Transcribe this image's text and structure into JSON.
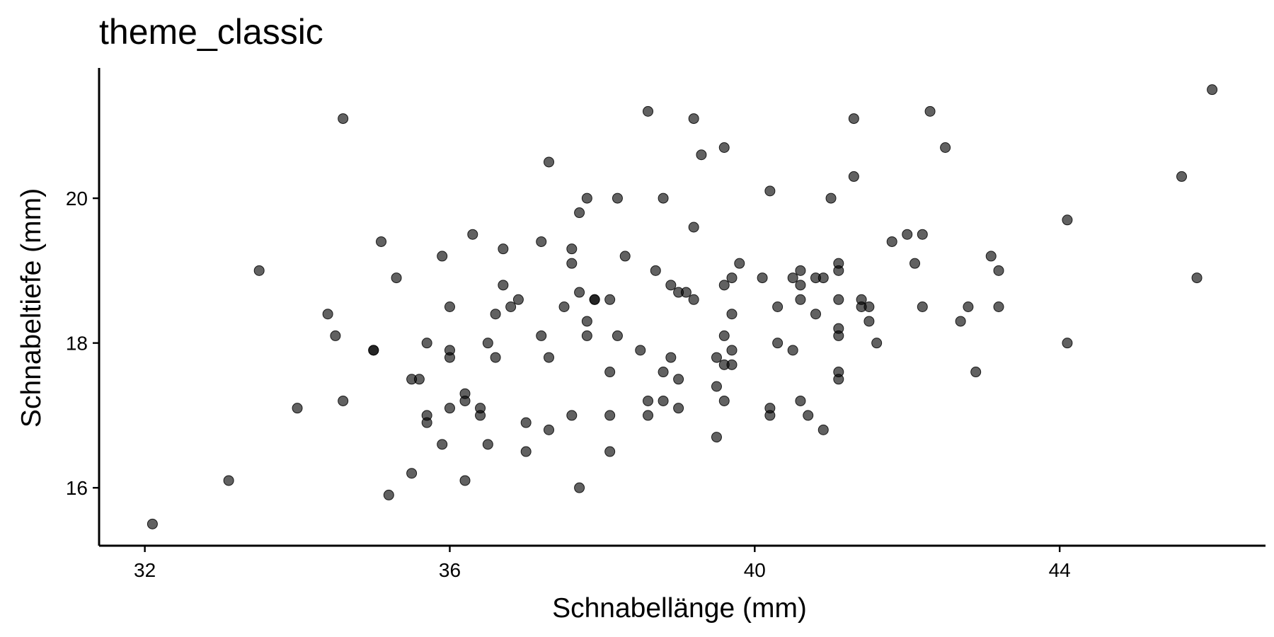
{
  "chart_data": {
    "type": "scatter",
    "title": "theme_classic",
    "xlabel": "Schnabellänge (mm)",
    "ylabel": "Schnabeltiefe (mm)",
    "xlim": [
      31.4,
      46.7
    ],
    "ylim": [
      15.2,
      21.8
    ],
    "x_ticks": [
      32,
      36,
      40,
      44
    ],
    "y_ticks": [
      16,
      18,
      20
    ],
    "grid": false,
    "legend": "none",
    "point_color": "#000000",
    "points": [
      [
        32.1,
        15.5
      ],
      [
        33.1,
        16.1
      ],
      [
        33.5,
        19.0
      ],
      [
        34.0,
        17.1
      ],
      [
        34.4,
        18.4
      ],
      [
        34.5,
        18.1
      ],
      [
        34.6,
        21.1
      ],
      [
        34.6,
        17.2
      ],
      [
        35.0,
        17.9
      ],
      [
        35.0,
        17.9
      ],
      [
        35.1,
        19.4
      ],
      [
        35.2,
        15.9
      ],
      [
        35.3,
        18.9
      ],
      [
        35.5,
        16.2
      ],
      [
        35.5,
        17.5
      ],
      [
        35.6,
        17.5
      ],
      [
        35.7,
        18.0
      ],
      [
        35.7,
        17.0
      ],
      [
        35.7,
        16.9
      ],
      [
        35.9,
        19.2
      ],
      [
        35.9,
        16.6
      ],
      [
        36.0,
        18.5
      ],
      [
        36.0,
        17.9
      ],
      [
        36.0,
        17.8
      ],
      [
        36.0,
        17.1
      ],
      [
        36.2,
        17.3
      ],
      [
        36.2,
        17.2
      ],
      [
        36.2,
        16.1
      ],
      [
        36.3,
        19.5
      ],
      [
        36.4,
        17.1
      ],
      [
        36.4,
        17.0
      ],
      [
        36.5,
        18.0
      ],
      [
        36.5,
        16.6
      ],
      [
        36.6,
        18.4
      ],
      [
        36.6,
        17.8
      ],
      [
        36.7,
        19.3
      ],
      [
        36.7,
        18.8
      ],
      [
        36.8,
        18.5
      ],
      [
        36.9,
        18.6
      ],
      [
        37.0,
        16.9
      ],
      [
        37.0,
        16.5
      ],
      [
        37.2,
        19.4
      ],
      [
        37.2,
        18.1
      ],
      [
        37.3,
        20.5
      ],
      [
        37.3,
        17.8
      ],
      [
        37.3,
        16.8
      ],
      [
        37.5,
        18.5
      ],
      [
        37.6,
        19.3
      ],
      [
        37.6,
        19.1
      ],
      [
        37.6,
        17.0
      ],
      [
        37.7,
        19.8
      ],
      [
        37.7,
        18.7
      ],
      [
        37.7,
        16.0
      ],
      [
        37.8,
        20.0
      ],
      [
        37.8,
        18.3
      ],
      [
        37.8,
        18.1
      ],
      [
        37.9,
        18.6
      ],
      [
        37.9,
        18.6
      ],
      [
        38.1,
        18.6
      ],
      [
        38.1,
        17.6
      ],
      [
        38.1,
        17.0
      ],
      [
        38.1,
        16.5
      ],
      [
        38.2,
        20.0
      ],
      [
        38.2,
        18.1
      ],
      [
        38.3,
        19.2
      ],
      [
        38.5,
        17.9
      ],
      [
        38.6,
        21.2
      ],
      [
        38.6,
        17.2
      ],
      [
        38.6,
        17.0
      ],
      [
        38.7,
        19.0
      ],
      [
        38.8,
        20.0
      ],
      [
        38.8,
        17.6
      ],
      [
        38.8,
        17.2
      ],
      [
        38.9,
        18.8
      ],
      [
        38.9,
        17.8
      ],
      [
        39.0,
        18.7
      ],
      [
        39.0,
        17.5
      ],
      [
        39.0,
        17.1
      ],
      [
        39.1,
        18.7
      ],
      [
        39.2,
        21.1
      ],
      [
        39.2,
        19.6
      ],
      [
        39.2,
        18.6
      ],
      [
        39.3,
        20.6
      ],
      [
        39.5,
        17.8
      ],
      [
        39.5,
        17.4
      ],
      [
        39.5,
        16.7
      ],
      [
        39.6,
        20.7
      ],
      [
        39.6,
        18.8
      ],
      [
        39.6,
        18.1
      ],
      [
        39.6,
        17.7
      ],
      [
        39.6,
        17.2
      ],
      [
        39.7,
        18.9
      ],
      [
        39.7,
        18.4
      ],
      [
        39.7,
        17.9
      ],
      [
        39.7,
        17.7
      ],
      [
        39.8,
        19.1
      ],
      [
        40.1,
        18.9
      ],
      [
        40.2,
        20.1
      ],
      [
        40.2,
        17.1
      ],
      [
        40.2,
        17.0
      ],
      [
        40.3,
        18.5
      ],
      [
        40.3,
        18.0
      ],
      [
        40.5,
        18.9
      ],
      [
        40.5,
        17.9
      ],
      [
        40.6,
        19.0
      ],
      [
        40.6,
        18.8
      ],
      [
        40.6,
        18.6
      ],
      [
        40.6,
        17.2
      ],
      [
        40.7,
        17.0
      ],
      [
        40.8,
        18.9
      ],
      [
        40.8,
        18.4
      ],
      [
        40.9,
        18.9
      ],
      [
        40.9,
        16.8
      ],
      [
        41.0,
        20.0
      ],
      [
        41.1,
        19.1
      ],
      [
        41.1,
        19.0
      ],
      [
        41.1,
        18.6
      ],
      [
        41.1,
        18.2
      ],
      [
        41.1,
        18.1
      ],
      [
        41.1,
        17.6
      ],
      [
        41.1,
        17.5
      ],
      [
        41.3,
        21.1
      ],
      [
        41.3,
        20.3
      ],
      [
        41.4,
        18.6
      ],
      [
        41.4,
        18.5
      ],
      [
        41.5,
        18.5
      ],
      [
        41.5,
        18.3
      ],
      [
        41.6,
        18.0
      ],
      [
        41.8,
        19.4
      ],
      [
        42.0,
        19.5
      ],
      [
        42.1,
        19.1
      ],
      [
        42.2,
        19.5
      ],
      [
        42.2,
        18.5
      ],
      [
        42.3,
        21.2
      ],
      [
        42.5,
        20.7
      ],
      [
        42.7,
        18.3
      ],
      [
        42.8,
        18.5
      ],
      [
        42.9,
        17.6
      ],
      [
        43.1,
        19.2
      ],
      [
        43.2,
        19.0
      ],
      [
        43.2,
        18.5
      ],
      [
        44.1,
        19.7
      ],
      [
        44.1,
        18.0
      ],
      [
        45.6,
        20.3
      ],
      [
        45.8,
        18.9
      ],
      [
        46.0,
        21.5
      ]
    ]
  }
}
